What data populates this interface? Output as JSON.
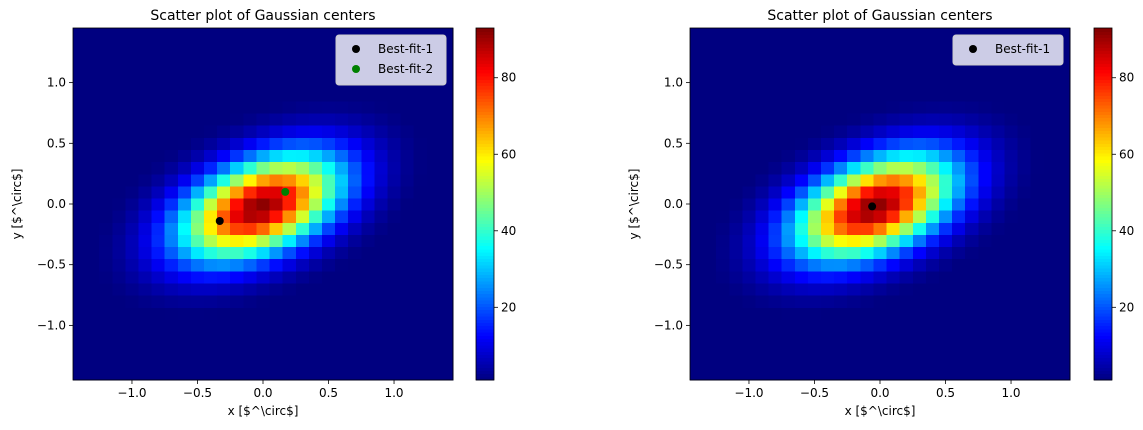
{
  "chart_data": [
    {
      "type": "heatmap",
      "title": "Scatter plot of Gaussian centers",
      "xlabel": "x [$^\\circ$]",
      "ylabel": "y [$^\\circ$]",
      "xlim": [
        -1.45,
        1.45
      ],
      "ylim": [
        -1.45,
        1.45
      ],
      "xticks": [
        -1.0,
        -0.5,
        0.0,
        0.5,
        1.0
      ],
      "yticks": [
        -1.0,
        -0.5,
        0.0,
        0.5,
        1.0
      ],
      "xtick_labels": [
        "−1.0",
        "−0.5",
        "0.0",
        "0.5",
        "1.0"
      ],
      "ytick_labels": [
        "−1.0",
        "−0.5",
        "0.0",
        "0.5",
        "1.0"
      ],
      "grid": false,
      "colormap": "jet",
      "bins": 29,
      "heatmap": {
        "center_x": -0.02,
        "center_y": -0.02,
        "sigma_x": 0.42,
        "sigma_y": 0.3,
        "correlation": 0.45,
        "peak": 92
      },
      "colorbar": {
        "min": 1,
        "max": 93,
        "ticks": [
          20,
          40,
          60,
          80
        ],
        "tick_labels": [
          "20",
          "40",
          "60",
          "80"
        ]
      },
      "legend_position": "top-right",
      "series": [
        {
          "name": "Best-fit-1",
          "color": "#000000",
          "x": [
            -0.33
          ],
          "y": [
            -0.14
          ]
        },
        {
          "name": "Best-fit-2",
          "color": "#008000",
          "x": [
            0.17
          ],
          "y": [
            0.1
          ]
        }
      ]
    },
    {
      "type": "heatmap",
      "title": "Scatter plot of Gaussian centers",
      "xlabel": "x [$^\\circ$]",
      "ylabel": "y [$^\\circ$]",
      "xlim": [
        -1.45,
        1.45
      ],
      "ylim": [
        -1.45,
        1.45
      ],
      "xticks": [
        -1.0,
        -0.5,
        0.0,
        0.5,
        1.0
      ],
      "yticks": [
        -1.0,
        -0.5,
        0.0,
        0.5,
        1.0
      ],
      "xtick_labels": [
        "−1.0",
        "−0.5",
        "0.0",
        "0.5",
        "1.0"
      ],
      "ytick_labels": [
        "−1.0",
        "−0.5",
        "0.0",
        "0.5",
        "1.0"
      ],
      "grid": false,
      "colormap": "jet",
      "bins": 29,
      "heatmap": {
        "center_x": -0.04,
        "center_y": -0.02,
        "sigma_x": 0.42,
        "sigma_y": 0.3,
        "correlation": 0.45,
        "peak": 92
      },
      "colorbar": {
        "min": 1,
        "max": 93,
        "ticks": [
          20,
          40,
          60,
          80
        ],
        "tick_labels": [
          "20",
          "40",
          "60",
          "80"
        ]
      },
      "legend_position": "top-right",
      "series": [
        {
          "name": "Best-fit-1",
          "color": "#000000",
          "x": [
            -0.06
          ],
          "y": [
            -0.02
          ]
        }
      ]
    }
  ]
}
